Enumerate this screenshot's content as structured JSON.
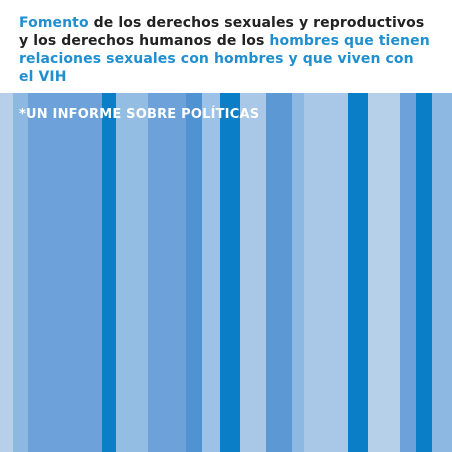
{
  "cover": {
    "title": {
      "line1": {
        "highlight": "Fomento",
        "rest": " de los derechos sexuales y reproductivos"
      },
      "line2": {
        "plain": "y los derechos humanos de los ",
        "highlight": "hombres que tienen"
      },
      "line3": {
        "highlight": "relaciones sexuales con hombres y que viven con"
      },
      "line4": {
        "highlight": "el VIH"
      }
    },
    "subtitle": "*UN INFORME SOBRE POLÍTICAS",
    "colors": {
      "highlight": "#1f8fd0",
      "text": "#222222",
      "subtitle": "#ffffff",
      "stripe_light": "#a9c7e6",
      "stripe_mid": "#6fa3d8",
      "stripe_bright": "#0a7fc8"
    }
  }
}
